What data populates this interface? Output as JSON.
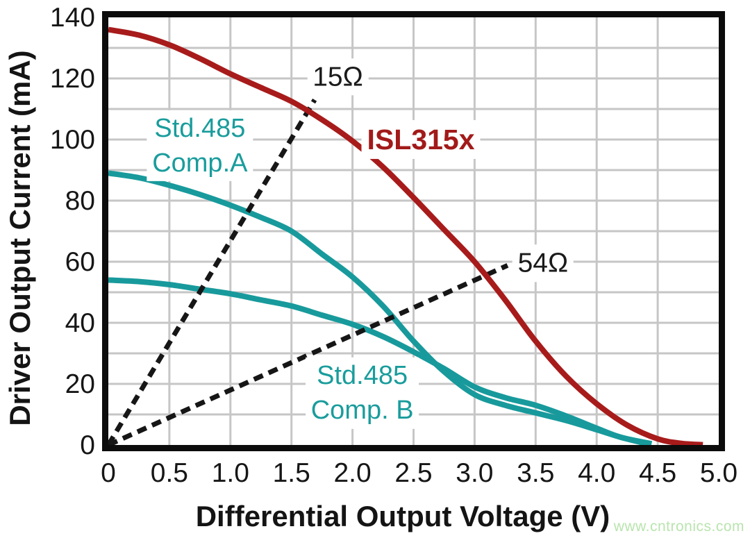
{
  "page": {
    "watermark": "www.cntronics.com",
    "watermark_color": "#b9e4ae",
    "background": "#ffffff"
  },
  "chart_data": {
    "type": "line",
    "title": "",
    "xlabel": "Differential Output Voltage (V)",
    "ylabel": "Driver Output Current (mA)",
    "xlim": [
      0,
      5
    ],
    "ylim": [
      0,
      140
    ],
    "x_tick_labels": [
      "0",
      "0.5",
      "1.0",
      "1.5",
      "2.0",
      "2.5",
      "3.0",
      "3.5",
      "4.0",
      "4.5",
      "5.0"
    ],
    "x_tick_values": [
      0,
      0.5,
      1,
      1.5,
      2,
      2.5,
      3,
      3.5,
      4,
      4.5,
      5
    ],
    "y_tick_labels": [
      "0",
      "20",
      "40",
      "60",
      "80",
      "100",
      "120",
      "140"
    ],
    "y_tick_values": [
      0,
      20,
      40,
      60,
      80,
      100,
      120,
      140
    ],
    "grid": {
      "on": true,
      "x_lines": [
        0.5,
        1,
        1.5,
        2,
        2.5,
        3,
        3.5,
        4,
        4.5
      ],
      "y_lines": [
        10,
        20,
        30,
        40,
        50,
        60,
        70,
        80,
        90,
        100,
        110,
        120,
        130
      ],
      "color": "#c6c6c6"
    },
    "frame_color": "#0c0c0c",
    "tick_label_color": "#161616",
    "series": [
      {
        "name": "Std.485 Comp.A",
        "type": "line",
        "style": "solid",
        "color": "#189a9c",
        "points": [
          [
            0,
            89
          ],
          [
            0.25,
            87.5
          ],
          [
            0.5,
            85
          ],
          [
            0.75,
            82
          ],
          [
            1,
            78.5
          ],
          [
            1.25,
            74.5
          ],
          [
            1.5,
            70
          ],
          [
            1.75,
            62.5
          ],
          [
            2,
            55
          ],
          [
            2.25,
            45.5
          ],
          [
            2.5,
            34
          ],
          [
            2.75,
            24
          ],
          [
            3,
            16.5
          ],
          [
            3.25,
            13
          ],
          [
            3.5,
            10.5
          ],
          [
            3.75,
            8
          ],
          [
            4,
            5
          ],
          [
            4.2,
            2.5
          ],
          [
            4.4,
            0.5
          ]
        ]
      },
      {
        "name": "Std.485 Comp. B",
        "type": "line",
        "style": "solid",
        "color": "#189a9c",
        "points": [
          [
            0,
            54
          ],
          [
            0.25,
            53.5
          ],
          [
            0.5,
            52.5
          ],
          [
            0.75,
            51
          ],
          [
            1,
            49.5
          ],
          [
            1.25,
            47.5
          ],
          [
            1.5,
            45.5
          ],
          [
            1.75,
            42.5
          ],
          [
            2,
            39.5
          ],
          [
            2.25,
            35.5
          ],
          [
            2.5,
            30.5
          ],
          [
            2.75,
            25
          ],
          [
            3,
            19
          ],
          [
            3.25,
            15.5
          ],
          [
            3.5,
            13
          ],
          [
            3.75,
            9.5
          ],
          [
            4,
            5.5
          ],
          [
            4.2,
            2.5
          ],
          [
            4.45,
            0.4
          ]
        ]
      },
      {
        "name": "15Ω load line",
        "type": "line",
        "style": "dashed",
        "color": "#161616",
        "points": [
          [
            0,
            0
          ],
          [
            1.69,
            113
          ]
        ]
      },
      {
        "name": "54Ω load line",
        "type": "line",
        "style": "dashed",
        "color": "#161616",
        "points": [
          [
            0,
            0
          ],
          [
            3.27,
            58.8
          ]
        ]
      },
      {
        "name": "ISL315x",
        "type": "line",
        "style": "solid",
        "color": "#a81b1b",
        "points": [
          [
            0,
            136
          ],
          [
            0.25,
            134.2
          ],
          [
            0.5,
            131
          ],
          [
            0.75,
            126.5
          ],
          [
            1,
            121.5
          ],
          [
            1.25,
            117
          ],
          [
            1.5,
            112.5
          ],
          [
            1.75,
            106.5
          ],
          [
            2,
            99.5
          ],
          [
            2.25,
            91
          ],
          [
            2.5,
            81
          ],
          [
            2.75,
            70.5
          ],
          [
            3,
            60
          ],
          [
            3.25,
            47.5
          ],
          [
            3.5,
            34
          ],
          [
            3.75,
            22.5
          ],
          [
            4,
            13.5
          ],
          [
            4.25,
            6.5
          ],
          [
            4.5,
            2
          ],
          [
            4.7,
            0.5
          ],
          [
            4.87,
            0.1
          ]
        ]
      }
    ],
    "annotations": [
      {
        "text": "15Ω",
        "v": 1.88,
        "ma": 120.5,
        "color": "#1a1a1a",
        "bold": false,
        "size": 39
      },
      {
        "text": "ISL315x",
        "v": 2.56,
        "ma": 100,
        "color": "#a21a1a",
        "bold": true,
        "size": 41
      },
      {
        "text": "54Ω",
        "v": 3.56,
        "ma": 59.5,
        "color": "#1a1a1a",
        "bold": false,
        "size": 39
      },
      {
        "text": "Std.485\nComp.A",
        "v": 0.75,
        "ma": 98,
        "color": "#1a9c9c",
        "bold": false,
        "size": 38
      },
      {
        "text": "Std.485\nComp. B",
        "v": 2.08,
        "ma": 17,
        "color": "#1a9c9c",
        "bold": false,
        "size": 38
      }
    ]
  }
}
